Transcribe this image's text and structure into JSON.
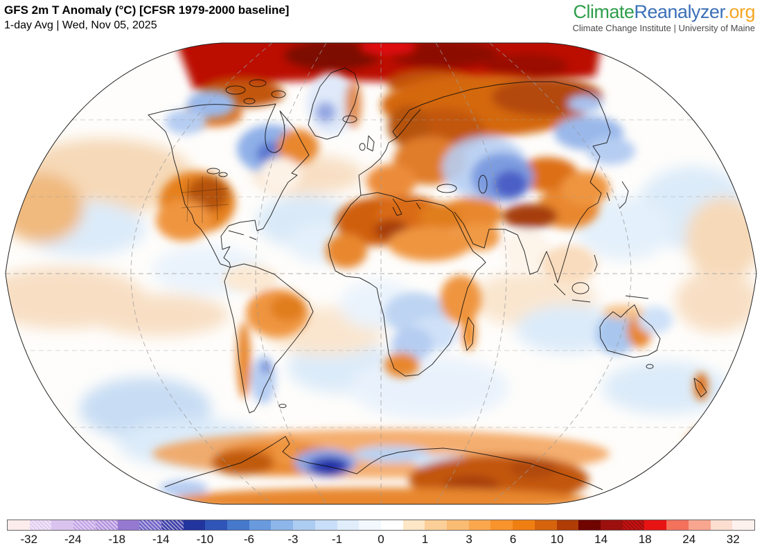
{
  "header": {
    "title": "GFS 2m T Anomaly (°C) [CFSR 1979-2000 baseline]",
    "subtitle": "1-day Avg | Wed, Nov 05, 2025"
  },
  "branding": {
    "logo_climate": "Climate",
    "logo_reanalyzer": "Reanalyzer",
    "logo_org": ".org",
    "tagline": "Climate Change Institute | University of Maine",
    "colors": {
      "climate": "#2e9e4b",
      "reanalyzer": "#3a6fb7",
      "org": "#f5a623",
      "tagline": "#4a4a4a"
    }
  },
  "chart_data": {
    "type": "heatmap",
    "title": "GFS 2m T Anomaly (°C) [CFSR 1979-2000 baseline]",
    "subtitle": "1-day Avg | Wed, Nov 05, 2025",
    "variable": "2 m air temperature anomaly",
    "units": "°C",
    "projection": "global Robinson-style ellipse, dashed graticule every 30° lat / 60° lon",
    "colorbar": {
      "orientation": "horizontal",
      "levels": [
        -32,
        -28,
        -24,
        -21,
        -18,
        -16,
        -14,
        -12,
        -10,
        -8,
        -6,
        -4.5,
        -3,
        -2,
        -1,
        -0.5,
        0,
        0.5,
        1,
        2,
        3,
        4.5,
        6,
        8,
        10,
        12,
        14,
        16,
        18,
        21,
        24,
        28,
        32
      ],
      "tick_labels": [
        "-32",
        "-24",
        "-18",
        "-14",
        "-10",
        "-6",
        "-3",
        "-1",
        "0",
        "1",
        "3",
        "6",
        "10",
        "14",
        "18",
        "24",
        "32"
      ],
      "segments": [
        {
          "color": "#fcecec",
          "hatched": false
        },
        {
          "color": "#e4cff2",
          "hatched": true
        },
        {
          "color": "#dac4ef",
          "hatched": false
        },
        {
          "color": "#c5a5e7",
          "hatched": true
        },
        {
          "color": "#b494df",
          "hatched": true
        },
        {
          "color": "#9579d1",
          "hatched": false
        },
        {
          "color": "#7064c8",
          "hatched": true
        },
        {
          "color": "#3d3fa8",
          "hatched": true
        },
        {
          "color": "#22349e",
          "hatched": false
        },
        {
          "color": "#2f55b8",
          "hatched": false
        },
        {
          "color": "#4678cc",
          "hatched": false
        },
        {
          "color": "#699ade",
          "hatched": false
        },
        {
          "color": "#8db6ea",
          "hatched": false
        },
        {
          "color": "#adccf2",
          "hatched": false
        },
        {
          "color": "#c9def8",
          "hatched": false
        },
        {
          "color": "#e0edfb",
          "hatched": false
        },
        {
          "color": "#f2f8fe",
          "hatched": false
        },
        {
          "color": "#ffffff",
          "hatched": false
        },
        {
          "color": "#fde7c6",
          "hatched": false
        },
        {
          "color": "#fbcf97",
          "hatched": false
        },
        {
          "color": "#fabb72",
          "hatched": false
        },
        {
          "color": "#faa74e",
          "hatched": false
        },
        {
          "color": "#f9932b",
          "hatched": false
        },
        {
          "color": "#f07f12",
          "hatched": false
        },
        {
          "color": "#d6640c",
          "hatched": false
        },
        {
          "color": "#b03c06",
          "hatched": false
        },
        {
          "color": "#700400",
          "hatched": false
        },
        {
          "color": "#9c100e",
          "hatched": false
        },
        {
          "color": "#c31212",
          "hatched": true
        },
        {
          "color": "#e81414",
          "hatched": false
        },
        {
          "color": "#f4715c",
          "hatched": false
        },
        {
          "color": "#f8a68f",
          "hatched": false
        },
        {
          "color": "#fbded0",
          "hatched": false
        },
        {
          "color": "#fdf1ee",
          "hatched": false
        }
      ]
    },
    "regions": [
      {
        "region": "Arctic Ocean / high Arctic band",
        "anomaly_c": "+14 to +28 (dark red/maroon)"
      },
      {
        "region": "Northern Siberia",
        "anomaly_c": "+6 to +14"
      },
      {
        "region": "Scandinavia & NW Russia",
        "anomaly_c": "+6 to +12"
      },
      {
        "region": "Central Asia / Kazakhstan",
        "anomaly_c": "-6 to -14 (cold blob)"
      },
      {
        "region": "Eastern Siberia",
        "anomaly_c": "-3 to -8"
      },
      {
        "region": "Tibetan Plateau / W China",
        "anomaly_c": "+8 to +14"
      },
      {
        "region": "Western & central United States",
        "anomaly_c": "+4 to +10"
      },
      {
        "region": "Hudson Bay / central Canada",
        "anomaly_c": "-4 to -10"
      },
      {
        "region": "Alaska & NW Canada",
        "anomaly_c": "-2 to -6"
      },
      {
        "region": "Greenland interior",
        "anomaly_c": "-2 to -6"
      },
      {
        "region": "Europe & Mediterranean fringe",
        "anomaly_c": "+2 to +8"
      },
      {
        "region": "Sahara / North Africa",
        "anomaly_c": "+4 to +10"
      },
      {
        "region": "Congo Basin",
        "anomaly_c": "-1 to -3"
      },
      {
        "region": "Brazil",
        "anomaly_c": "+2 to +6"
      },
      {
        "region": "Argentina",
        "anomaly_c": "-1 to -4"
      },
      {
        "region": "Western Australia",
        "anomaly_c": "-1 to -4"
      },
      {
        "region": "Central Australia",
        "anomaly_c": "+2 to +6"
      },
      {
        "region": "New Zealand",
        "anomaly_c": "+3 to +8"
      },
      {
        "region": "East Antarctica coast",
        "anomaly_c": "+6 to +14"
      },
      {
        "region": "Antarctic coastal spot near peninsula",
        "anomaly_c": "-10 to -18 (dark blue)"
      },
      {
        "region": "Global oceans",
        "anomaly_c": "mostly -1 to +3, mottled"
      }
    ]
  }
}
